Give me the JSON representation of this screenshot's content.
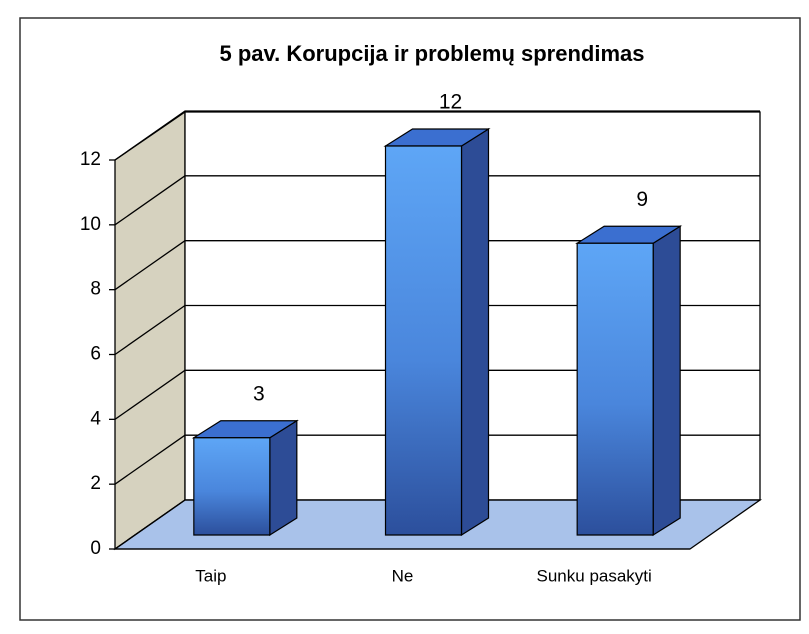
{
  "chart_data": {
    "type": "bar3d",
    "title": "5 pav. Korupcija ir problemų sprendimas",
    "categories": [
      "Taip",
      "Ne",
      "Sunku pasakyti"
    ],
    "values": [
      3,
      12,
      9
    ],
    "color": "#3a6cc8",
    "ylim": [
      0,
      12
    ],
    "yticks": [
      0,
      2,
      4,
      6,
      8,
      10,
      12
    ],
    "grid": true
  }
}
